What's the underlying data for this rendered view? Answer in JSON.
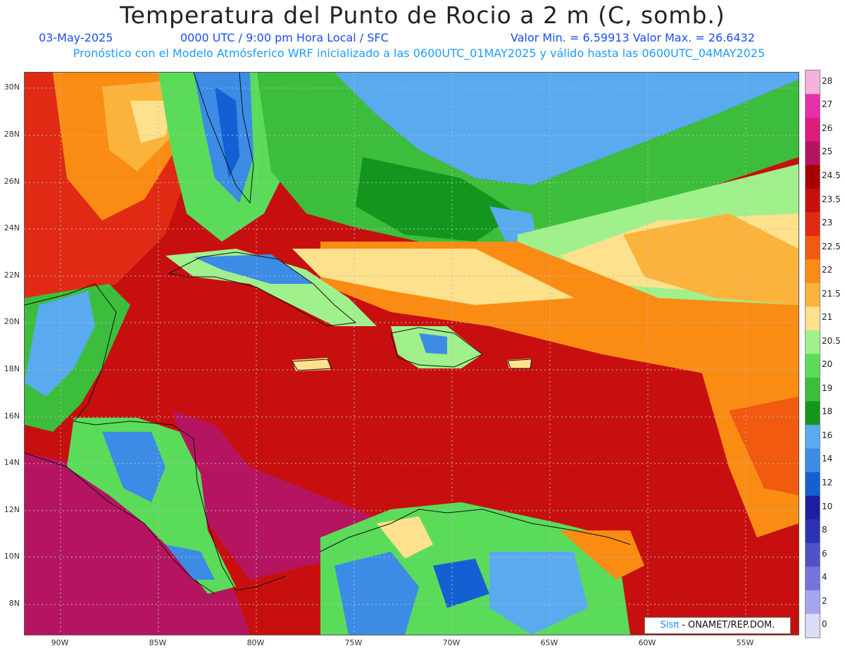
{
  "header": {
    "title": "Temperatura del Punto de Rocio a 2 m (C, somb.)",
    "date": "03-May-2025",
    "time_info": "0000 UTC / 9:00 pm Hora Local / SFC",
    "min_max": "Valor Min. = 6.59913  Valor Max. = 26.6432",
    "model_info": "Pronóstico con el Modelo Atmósferico WRF inicializado a las 0600UTC_01MAY2025 y válido hasta las  0600UTC_04MAY2025"
  },
  "axes": {
    "lat_labels": [
      "30N",
      "28N",
      "26N",
      "24N",
      "22N",
      "20N",
      "18N",
      "16N",
      "14N",
      "12N",
      "10N",
      "8N"
    ],
    "lon_labels": [
      "90W",
      "85W",
      "80W",
      "75W",
      "70W",
      "65W",
      "60W",
      "55W"
    ]
  },
  "legend": {
    "labels": [
      "28",
      "27",
      "26",
      "25",
      "24.5",
      "23.5",
      "23",
      "22.5",
      "22",
      "21.5",
      "21",
      "20.5",
      "20",
      "19",
      "18",
      "16",
      "14",
      "12",
      "10",
      "8",
      "6",
      "4",
      "2",
      "0"
    ],
    "colors": [
      "#f3b3dd",
      "#e62fa8",
      "#de1a7d",
      "#b51560",
      "#a80000",
      "#c80f0f",
      "#e02a14",
      "#f25a0f",
      "#fa8c14",
      "#fbb33c",
      "#fde18c",
      "#a0f08c",
      "#5adc5a",
      "#3cbe3c",
      "#14961e",
      "#5aaaf0",
      "#3c8ce6",
      "#1460d2",
      "#1e1ea0",
      "#2d32b4",
      "#5050c8",
      "#7873dc",
      "#a5a5f0",
      "#dcdcf8"
    ]
  },
  "credit": {
    "logo": "Sisπ",
    "org": " - ONAMET/REP.DOM."
  },
  "colors": {
    "sea_red": "#c80f0f",
    "pacific_magenta": "#b51560",
    "atlantic_blue": "#5aaaf0",
    "green": "#3cbe3c"
  }
}
